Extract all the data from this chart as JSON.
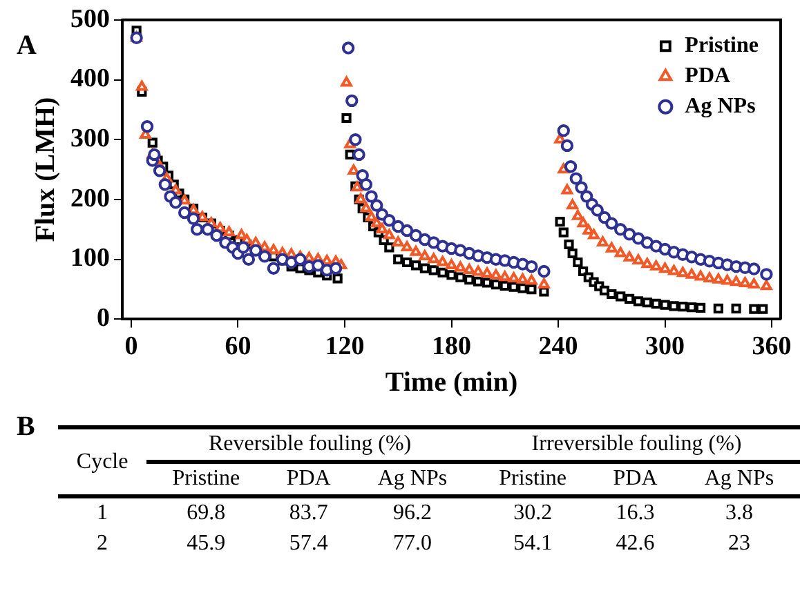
{
  "chart_data": [
    {
      "type": "scatter",
      "title": "A",
      "xlabel": "Time (min)",
      "ylabel": "Flux (LMH)",
      "xlim": [
        -5,
        365
      ],
      "xticks": [
        0,
        60,
        120,
        180,
        240,
        300,
        360
      ],
      "ylim": [
        0,
        500
      ],
      "yticks": [
        0,
        100,
        200,
        300,
        400,
        500
      ],
      "grid": false,
      "legend": "top right",
      "series": [
        {
          "name": "Pristine",
          "color": "#000000",
          "marker": "square",
          "x": [
            3,
            6,
            12,
            15,
            18,
            21,
            24,
            27,
            30,
            35,
            40,
            45,
            50,
            55,
            60,
            65,
            70,
            75,
            80,
            85,
            90,
            95,
            100,
            105,
            110,
            116,
            121,
            123,
            126,
            128,
            130,
            133,
            136,
            139,
            142,
            145,
            150,
            155,
            160,
            165,
            170,
            175,
            180,
            185,
            190,
            195,
            200,
            205,
            210,
            215,
            220,
            225,
            232,
            241,
            243,
            246,
            248,
            251,
            254,
            257,
            260,
            263,
            266,
            270,
            275,
            280,
            285,
            290,
            295,
            300,
            305,
            310,
            315,
            320,
            330,
            340,
            350,
            355
          ],
          "values": [
            482,
            380,
            295,
            265,
            255,
            240,
            225,
            210,
            200,
            185,
            170,
            160,
            148,
            140,
            132,
            125,
            null,
            null,
            105,
            98,
            88,
            85,
            82,
            78,
            73,
            68,
            336,
            275,
            222,
            200,
            185,
            170,
            155,
            145,
            132,
            120,
            100,
            95,
            90,
            85,
            82,
            78,
            74,
            70,
            66,
            63,
            61,
            58,
            56,
            54,
            52,
            50,
            46,
            163,
            145,
            125,
            110,
            95,
            80,
            70,
            62,
            55,
            48,
            42,
            38,
            34,
            30,
            28,
            26,
            24,
            22,
            21,
            20,
            19,
            18,
            18,
            17,
            17
          ]
        },
        {
          "name": "PDA",
          "color": "#f05a28",
          "marker": "triangle",
          "x": [
            3,
            6,
            8,
            12,
            16,
            20,
            25,
            30,
            35,
            40,
            45,
            50,
            55,
            62,
            65,
            70,
            75,
            80,
            85,
            90,
            95,
            100,
            105,
            110,
            115,
            118,
            121,
            123,
            125,
            127,
            129,
            132,
            135,
            138,
            141,
            145,
            150,
            155,
            160,
            165,
            170,
            175,
            180,
            185,
            190,
            195,
            200,
            205,
            210,
            215,
            220,
            225,
            232,
            241,
            243,
            245,
            248,
            251,
            254,
            257,
            260,
            265,
            270,
            275,
            280,
            285,
            290,
            295,
            300,
            305,
            310,
            315,
            320,
            325,
            330,
            335,
            340,
            345,
            350,
            357
          ],
          "values": [
            470,
            388,
            308,
            275,
            255,
            235,
            215,
            198,
            182,
            170,
            160,
            152,
            145,
            140,
            132,
            127,
            120,
            115,
            110,
            108,
            104,
            102,
            100,
            97,
            96,
            90,
            395,
            292,
            248,
            220,
            200,
            185,
            170,
            160,
            150,
            140,
            128,
            120,
            112,
            105,
            100,
            95,
            90,
            86,
            82,
            79,
            76,
            73,
            70,
            68,
            66,
            64,
            58,
            300,
            250,
            215,
            190,
            172,
            160,
            148,
            140,
            128,
            118,
            110,
            103,
            98,
            92,
            88,
            84,
            80,
            77,
            74,
            71,
            68,
            66,
            64,
            62,
            60,
            58,
            55
          ]
        },
        {
          "name": "Ag NPs",
          "color": "#2e3192",
          "marker": "circle",
          "x": [
            3,
            9,
            12,
            13,
            16,
            19,
            22,
            25,
            30,
            35,
            37,
            43,
            48,
            53,
            57,
            60,
            63,
            66,
            70,
            75,
            80,
            85,
            90,
            95,
            100,
            105,
            110,
            115,
            122,
            124,
            126,
            128,
            130,
            132,
            135,
            138,
            141,
            145,
            150,
            155,
            160,
            165,
            170,
            175,
            180,
            185,
            190,
            195,
            200,
            205,
            210,
            215,
            220,
            225,
            232,
            243,
            245,
            247,
            250,
            253,
            256,
            259,
            262,
            266,
            270,
            275,
            280,
            285,
            290,
            295,
            300,
            305,
            310,
            315,
            320,
            325,
            330,
            335,
            340,
            345,
            350,
            357
          ],
          "values": [
            470,
            322,
            265,
            275,
            248,
            225,
            205,
            195,
            178,
            168,
            150,
            150,
            140,
            128,
            120,
            110,
            120,
            100,
            115,
            105,
            85,
            100,
            95,
            100,
            88,
            90,
            82,
            85,
            453,
            365,
            300,
            275,
            240,
            225,
            205,
            190,
            175,
            165,
            155,
            148,
            140,
            133,
            128,
            122,
            118,
            115,
            110,
            106,
            103,
            100,
            98,
            95,
            92,
            88,
            80,
            315,
            290,
            255,
            235,
            220,
            205,
            192,
            182,
            170,
            160,
            150,
            142,
            135,
            128,
            122,
            117,
            112,
            108,
            104,
            100,
            97,
            94,
            91,
            88,
            86,
            84,
            75
          ]
        }
      ]
    },
    {
      "type": "other",
      "title": "B",
      "annotations": [
        "Cycle",
        "Reversible fouling (%)",
        "Irreversible fouling (%)",
        "Pristine",
        "PDA",
        "Ag NPs",
        "Pristine",
        "PDA",
        "Ag NPs",
        "1",
        "69.8",
        "83.7",
        "96.2",
        "30.2",
        "16.3",
        "3.8",
        "2",
        "45.9",
        "57.4",
        "77.0",
        "54.1",
        "42.6",
        "23"
      ]
    }
  ]
}
